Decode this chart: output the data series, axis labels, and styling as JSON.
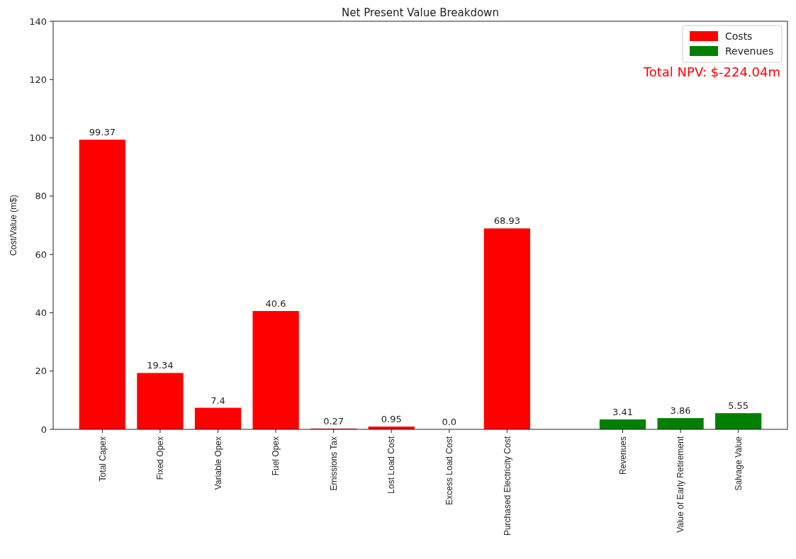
{
  "chart_data": {
    "type": "bar",
    "title": "Net Present Value Breakdown",
    "ylabel": "Cost/Value (m$)",
    "stacked": true,
    "categories": [
      "Total Capex",
      "Fixed Opex",
      "Variable Opex",
      "Fuel Opex",
      "Emissions Tax",
      "Lost Load Cost",
      "Excess Load Cost",
      "Purchased Electricity Cost",
      null,
      "Revenues",
      "Value of Early Retirement",
      "Salvage Value"
    ],
    "series": [
      {
        "name": "Costs",
        "color": "#ff0000",
        "values": [
          99.37,
          19.34,
          7.4,
          40.6,
          0.27,
          0.95,
          0.0,
          68.93,
          null,
          null,
          null,
          null
        ],
        "value_labels": [
          "99.37",
          "19.34",
          "7.4",
          "40.6",
          "0.27",
          "0.95",
          "0.0",
          "68.93",
          null,
          null,
          null,
          null
        ]
      },
      {
        "name": "Revenues",
        "color": "#008000",
        "values": [
          null,
          null,
          null,
          null,
          null,
          null,
          null,
          null,
          null,
          3.41,
          3.86,
          5.55
        ],
        "value_labels": [
          null,
          null,
          null,
          null,
          null,
          null,
          null,
          null,
          null,
          "3.41",
          "3.86",
          "5.55"
        ]
      }
    ],
    "ylim": [
      0,
      140
    ],
    "yticks": [
      0,
      20,
      40,
      60,
      80,
      100,
      120,
      140
    ],
    "grid": false,
    "legend": "top right",
    "annotations": [
      "Total NPV: $-224.04m"
    ]
  }
}
